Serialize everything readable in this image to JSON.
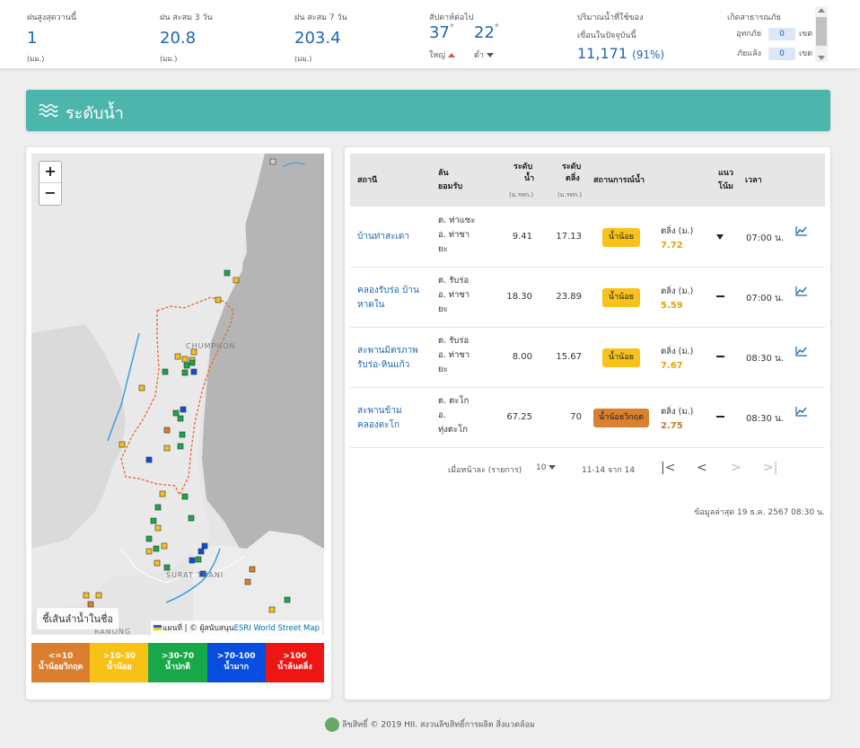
{
  "top": {
    "rain_max": {
      "label": "ฝนสูงสุดวานนี้",
      "value": "1",
      "unit": "(มม.)"
    },
    "rain_3d": {
      "label": "ฝน สะสม 3 วัน",
      "value": "20.8",
      "unit": "(มม.)"
    },
    "rain_7d": {
      "label": "ฝน สะสม 7 วัน",
      "value": "203.4",
      "unit": "(มม.)"
    },
    "forecast": {
      "label": "สัปดาห์ต่อไป",
      "high": "37",
      "low": "22",
      "deg": "°",
      "high_label": "ใหญ่",
      "low_label": "ต่ำ"
    },
    "dam": {
      "label": "ปริมาณน้ำที่ใช้ของ",
      "label2": "เขื่อนในปัจจุบันนี้",
      "value": "11,171",
      "percent": "(91%)"
    },
    "disaster": {
      "label": "เกิดสาธารณภัย",
      "flood_label": "อุทกภัย",
      "flood_count": "0",
      "drought_label": "ภัยแล้ง",
      "drought_count": "0",
      "unit": "เขต"
    }
  },
  "section": {
    "title": "ระดับน้ำ",
    "icon": "waves-icon"
  },
  "map": {
    "zoom_in": "+",
    "zoom_out": "−",
    "river_label": "ชี้เส้นลำน้ำในชื่อ",
    "labels": [
      "CHUMPHON",
      "SURAT THANI",
      "RANONG"
    ],
    "attribution_prefix": "แผนที่ | © ผู้สนับสนุน",
    "attribution_link": "ESRI World Street Map",
    "legend": [
      {
        "range": "<=10",
        "label": "น้ำน้อยวิกฤต",
        "color": "#db7f2e"
      },
      {
        "range": ">10-30",
        "label": "น้ำน้อย",
        "color": "#f7c116"
      },
      {
        "range": ">30-70",
        "label": "น้ำปกติ",
        "color": "#18a84a"
      },
      {
        "range": ">70-100",
        "label": "น้ำมาก",
        "color": "#0a4ee0"
      },
      {
        "range": ">100",
        "label": "น้ำล้นตลิ่ง",
        "color": "#ee1515"
      }
    ]
  },
  "table": {
    "headers": {
      "station": "สถานี",
      "location_1": "ลัน",
      "location_2": "ยอมรับ",
      "level_1": "ระดับ",
      "level_2": "น้ำ",
      "level_unit": "(ม.รทก.)",
      "bank_1": "ระดับ",
      "bank_2": "ตลิ่ง",
      "bank_unit": "(ม.รทก.)",
      "status": "สถานการณ์น้ำ",
      "trend_1": "แนว",
      "trend_2": "โน้ม",
      "time": "เวลา"
    },
    "rows": [
      {
        "station_1": "บ้านท่าสะเดา",
        "station_2": "",
        "loc_1": "ต. ท่าแซะ",
        "loc_2": "อ. ท่าซา",
        "loc_3": "ยะ",
        "level": "9.41",
        "bank": "17.13",
        "status": "น้ำน้อย",
        "status_color": "yellow",
        "bank_label": "ตลิ่ง (ม.)",
        "bank_value": "7.72",
        "bank_value_color": "#e0a800",
        "trend": "down",
        "time": "07:00 น."
      },
      {
        "station_1": "คลองรับร่อ บ้าน",
        "station_2": "หาดใน",
        "loc_1": "ต. รับร่อ",
        "loc_2": "อ. ท่าซา",
        "loc_3": "ยะ",
        "level": "18.30",
        "bank": "23.89",
        "status": "น้ำน้อย",
        "status_color": "yellow",
        "bank_label": "ตลิ่ง (ม.)",
        "bank_value": "5.59",
        "bank_value_color": "#e0a800",
        "trend": "flat",
        "time": "07:00 น."
      },
      {
        "station_1": "สะพานมิตรภาพ",
        "station_2": "รับร่อ-หินแก้ว",
        "loc_1": "ต. รับร่อ",
        "loc_2": "อ. ท่าซา",
        "loc_3": "ยะ",
        "level": "8.00",
        "bank": "15.67",
        "status": "น้ำน้อย",
        "status_color": "yellow",
        "bank_label": "ตลิ่ง (ม.)",
        "bank_value": "7.67",
        "bank_value_color": "#e0a800",
        "trend": "flat",
        "time": "08:30 น."
      },
      {
        "station_1": "สะพานข้าม",
        "station_2": "คลองตะโก",
        "loc_1": "ต. ตะโก",
        "loc_2": "อ.",
        "loc_3": "ทุ่งตะโก",
        "level": "67.25",
        "bank": "70",
        "status": "น้ำน้อยวิกฤต",
        "status_color": "orange",
        "bank_label": "ตลิ่ง (ม.)",
        "bank_value": "2.75",
        "bank_value_color": "#c97a2c",
        "trend": "flat",
        "time": "08:30 น."
      }
    ],
    "pager": {
      "per_page_label": "เมื่อหน้าละ (รายการ)",
      "per_page_value": "10",
      "range": "11-14 จาก 14",
      "first": "|<",
      "prev": "<",
      "next": ">",
      "last": ">|"
    },
    "updated": "ข้อมูลล่าสุด 19 ธ.ค. 2567 08:30 น."
  },
  "footer": {
    "text": "ลิขสิทธิ์ © 2019 HII. สงวนลิขสิทธิ์การผลิต สิ่งแวดล้อม"
  }
}
